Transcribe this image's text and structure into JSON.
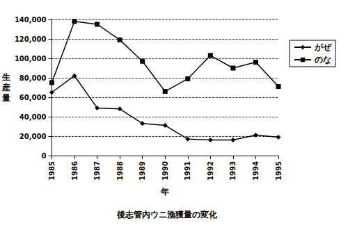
{
  "chart_data": {
    "type": "line",
    "title": "後志管内ウニ漁獲量の変化",
    "x_label": "年",
    "y_label": "生産量",
    "categories": [
      "1985",
      "1986",
      "1987",
      "1988",
      "1989",
      "1990",
      "1991",
      "1992",
      "1993",
      "1994",
      "1995"
    ],
    "series": [
      {
        "name": "がぜ",
        "color": "#000000",
        "marker": "diamond",
        "line_style": "solid",
        "values": [
          65000,
          82000,
          49000,
          48000,
          33000,
          31000,
          17000,
          16000,
          16000,
          21000,
          19000
        ]
      },
      {
        "name": "のな",
        "color": "#000000",
        "marker": "square",
        "line_style": "solid",
        "values": [
          75000,
          138000,
          135000,
          119000,
          97000,
          66000,
          79000,
          103000,
          90000,
          96000,
          71000
        ]
      }
    ],
    "ylim": [
      0,
      140000
    ],
    "yticks": [
      0,
      {
        "value": 20000,
        "label": "20,000"
      },
      {
        "value": 40000,
        "label": "40,000"
      },
      {
        "value": 60000,
        "label": "60,000"
      },
      {
        "value": 80000,
        "label": "80,000"
      },
      {
        "value": 100000,
        "label": "100,000"
      },
      {
        "value": 120000,
        "label": "120,000"
      },
      {
        "value": 140000,
        "label": "140,000"
      }
    ],
    "grid": true,
    "legend": "right"
  }
}
